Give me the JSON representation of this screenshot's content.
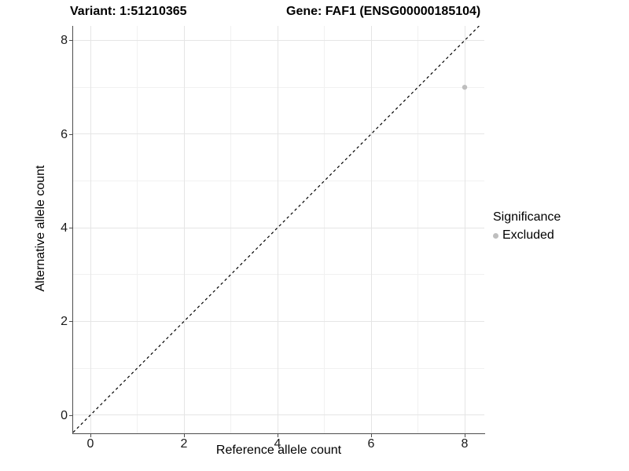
{
  "figure": {
    "title_left": "Variant: 1:51210365",
    "title_right": "Gene: FAF1 (ENSG00000185104)"
  },
  "chart_data": {
    "type": "scatter",
    "titles": [
      "Variant: 1:51210365",
      "Gene: FAF1 (ENSG00000185104)"
    ],
    "xlabel": "Reference allele count",
    "ylabel": "Alternative allele count",
    "xlim": [
      -0.37,
      8.42
    ],
    "ylim": [
      -0.39,
      8.31
    ],
    "x_ticks": [
      0,
      2,
      4,
      6,
      8
    ],
    "y_ticks": [
      0,
      2,
      4,
      6,
      8
    ],
    "x_minor": [
      1,
      3,
      5,
      7
    ],
    "y_minor": [
      1,
      3,
      5,
      7
    ],
    "grid": "major+minor, white panel background",
    "points": [
      {
        "x": 8,
        "y": 7,
        "significance": "Excluded"
      }
    ],
    "identity_line": {
      "style": "dashed",
      "from": -0.37,
      "to": 8.31,
      "color": "#000000"
    },
    "legend": {
      "title": "Significance",
      "position": "right",
      "items": [
        {
          "label": "Excluded",
          "color": "#bebebe"
        }
      ]
    },
    "colors": {
      "point": "#bebebe",
      "grid_major": "#e5e5e5",
      "grid_minor": "#f1f1f1",
      "axis_line": "#4d4d4d",
      "tick_label": "#1a1a1a",
      "text": "#000000"
    }
  }
}
